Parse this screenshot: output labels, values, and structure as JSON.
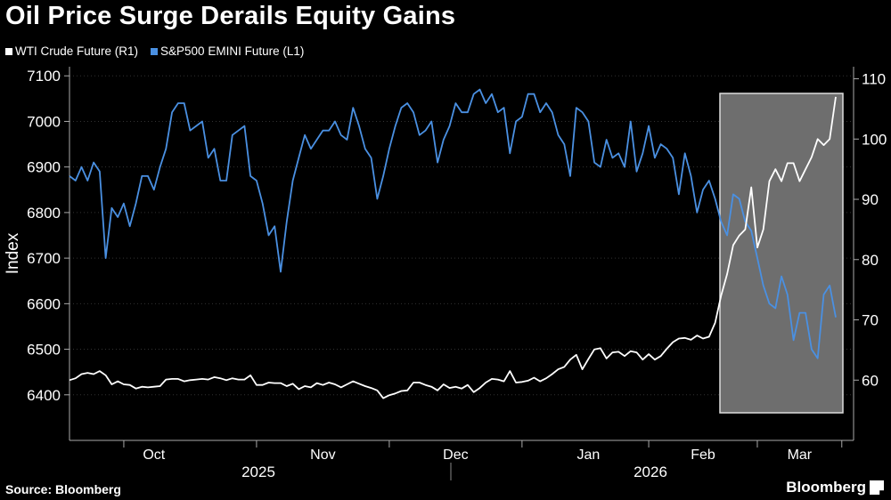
{
  "title": "Oil Price Surge Derails Equity Gains",
  "legend": [
    {
      "label": "WTI Crude Future  (R1)",
      "color": "#ffffff"
    },
    {
      "label": "S&P500 EMINI Future (L1)",
      "color": "#4a90e2"
    }
  ],
  "source": "Source: Bloomberg",
  "brand": "Bloomberg",
  "chart_data": {
    "type": "line",
    "ylabel": "Index",
    "ylim_left": [
      6300,
      7120
    ],
    "ylim_right": [
      50,
      112
    ],
    "left_ticks": [
      6400,
      6500,
      6600,
      6700,
      6800,
      6900,
      7000,
      7100
    ],
    "right_ticks": [
      60,
      70,
      80,
      90,
      100,
      110
    ],
    "x_month_labels": [
      "Oct",
      "Nov",
      "Dec",
      "Jan",
      "Feb",
      "Mar"
    ],
    "x_year_labels": [
      "2025",
      "2026"
    ],
    "highlight_range_index": [
      104,
      122
    ],
    "series": [
      {
        "name": "S&P500 EMINI Future (L1)",
        "axis": "left",
        "color": "#4a90e2",
        "values": [
          6880,
          6870,
          6900,
          6870,
          6910,
          6890,
          6700,
          6810,
          6790,
          6820,
          6770,
          6820,
          6880,
          6880,
          6850,
          6900,
          6940,
          7020,
          7040,
          7040,
          6980,
          6990,
          7000,
          6920,
          6940,
          6870,
          6870,
          6970,
          6980,
          6990,
          6880,
          6870,
          6820,
          6750,
          6770,
          6670,
          6780,
          6870,
          6920,
          6970,
          6940,
          6960,
          6980,
          6980,
          7000,
          6970,
          6960,
          7030,
          6990,
          6940,
          6920,
          6830,
          6880,
          6940,
          6990,
          7030,
          7040,
          7020,
          6970,
          6980,
          7000,
          6910,
          6960,
          6990,
          7040,
          7020,
          7020,
          7060,
          7070,
          7040,
          7060,
          7020,
          7030,
          6930,
          7000,
          7010,
          7060,
          7060,
          7020,
          7040,
          7020,
          6970,
          6950,
          6880,
          7030,
          7020,
          7000,
          6910,
          6900,
          6960,
          6920,
          6930,
          6900,
          7000,
          6890,
          6930,
          6990,
          6920,
          6950,
          6940,
          6920,
          6840,
          6930,
          6880,
          6800,
          6850,
          6870,
          6830,
          6780,
          6750,
          6840,
          6830,
          6780,
          6760,
          6700,
          6640,
          6600,
          6590,
          6660,
          6620,
          6520,
          6580,
          6580,
          6500,
          6480,
          6620,
          6640,
          6570
        ]
      },
      {
        "name": "WTI Crude Future  (R1)",
        "axis": "right",
        "color": "#ffffff",
        "values": [
          60.0,
          60.3,
          61.0,
          61.2,
          61.0,
          61.5,
          60.8,
          59.3,
          59.8,
          59.3,
          59.2,
          58.6,
          58.9,
          58.8,
          58.9,
          59.0,
          60.1,
          60.2,
          60.2,
          59.8,
          60.0,
          60.1,
          60.2,
          60.1,
          60.5,
          60.3,
          60.0,
          60.3,
          60.1,
          60.1,
          60.8,
          59.2,
          59.2,
          59.6,
          59.5,
          59.5,
          59.0,
          59.4,
          58.5,
          59.0,
          58.8,
          59.5,
          59.2,
          59.6,
          59.3,
          58.8,
          59.3,
          59.8,
          59.4,
          59.0,
          58.7,
          58.3,
          57.0,
          57.5,
          57.8,
          58.2,
          58.3,
          59.6,
          59.6,
          59.2,
          58.9,
          58.3,
          59.3,
          58.7,
          58.9,
          58.6,
          59.2,
          58.0,
          58.7,
          59.6,
          60.2,
          60.1,
          59.8,
          61.5,
          59.6,
          59.7,
          59.9,
          60.4,
          59.8,
          60.3,
          61.0,
          61.8,
          62.2,
          63.4,
          64.2,
          61.8,
          63.5,
          65.1,
          65.3,
          63.6,
          64.6,
          64.7,
          64.0,
          64.8,
          64.6,
          63.4,
          64.3,
          63.4,
          64.0,
          65.2,
          66.3,
          66.9,
          67.0,
          66.7,
          67.4,
          66.9,
          67.2,
          69.5,
          74.0,
          77.6,
          82.4,
          84.0,
          85.0,
          92.0,
          82.0,
          85.0,
          93.0,
          95.0,
          93.0,
          96.0,
          96.0,
          93.0,
          95.0,
          97.0,
          100.0,
          99.0,
          100.0,
          107.0
        ]
      }
    ]
  }
}
